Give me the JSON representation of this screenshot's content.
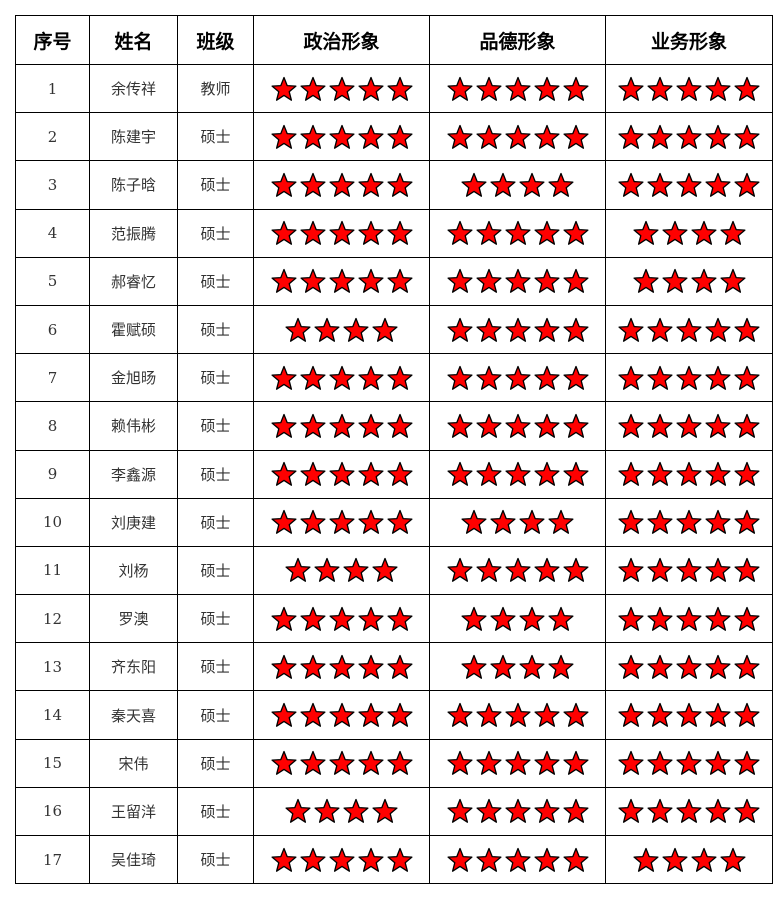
{
  "headers": [
    "序号",
    "姓名",
    "班级",
    "政治形象",
    "品德形象",
    "业务形象"
  ],
  "star_color": "#ff0000",
  "rows": [
    {
      "no": "1",
      "name": "余传祥",
      "class": "教师",
      "political": 5,
      "moral": 5,
      "business": 5
    },
    {
      "no": "2",
      "name": "陈建宇",
      "class": "硕士",
      "political": 5,
      "moral": 5,
      "business": 5
    },
    {
      "no": "3",
      "name": "陈子晗",
      "class": "硕士",
      "political": 5,
      "moral": 4,
      "business": 5
    },
    {
      "no": "4",
      "name": "范振腾",
      "class": "硕士",
      "political": 5,
      "moral": 5,
      "business": 4
    },
    {
      "no": "5",
      "name": "郝睿忆",
      "class": "硕士",
      "political": 5,
      "moral": 5,
      "business": 4
    },
    {
      "no": "6",
      "name": "霍赋硕",
      "class": "硕士",
      "political": 4,
      "moral": 5,
      "business": 5
    },
    {
      "no": "7",
      "name": "金旭旸",
      "class": "硕士",
      "political": 5,
      "moral": 5,
      "business": 5
    },
    {
      "no": "8",
      "name": "赖伟彬",
      "class": "硕士",
      "political": 5,
      "moral": 5,
      "business": 5
    },
    {
      "no": "9",
      "name": "李鑫源",
      "class": "硕士",
      "political": 5,
      "moral": 5,
      "business": 5
    },
    {
      "no": "10",
      "name": "刘庚建",
      "class": "硕士",
      "political": 5,
      "moral": 4,
      "business": 5
    },
    {
      "no": "11",
      "name": "刘杨",
      "class": "硕士",
      "political": 4,
      "moral": 5,
      "business": 5
    },
    {
      "no": "12",
      "name": "罗澳",
      "class": "硕士",
      "political": 5,
      "moral": 4,
      "business": 5
    },
    {
      "no": "13",
      "name": "齐东阳",
      "class": "硕士",
      "political": 5,
      "moral": 4,
      "business": 5
    },
    {
      "no": "14",
      "name": "秦天喜",
      "class": "硕士",
      "political": 5,
      "moral": 5,
      "business": 5
    },
    {
      "no": "15",
      "name": "宋伟",
      "class": "硕士",
      "political": 5,
      "moral": 5,
      "business": 5
    },
    {
      "no": "16",
      "name": "王留洋",
      "class": "硕士",
      "political": 4,
      "moral": 5,
      "business": 5
    },
    {
      "no": "17",
      "name": "吴佳琦",
      "class": "硕士",
      "political": 5,
      "moral": 5,
      "business": 4
    }
  ]
}
